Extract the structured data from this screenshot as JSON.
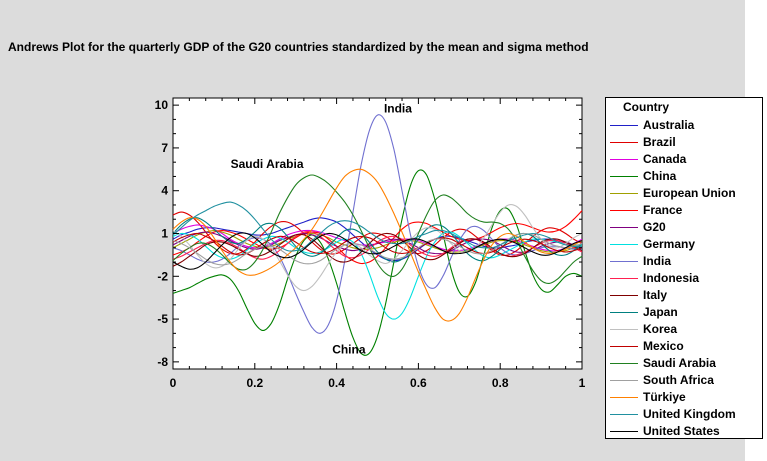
{
  "chart_data": {
    "type": "line",
    "title": "Andrews Plot for the quarterly GDP of the G20 countries standardized by the mean and sigma method",
    "xlim": [
      0,
      1
    ],
    "ylim": [
      -8.5,
      10.5
    ],
    "x_ticks": [
      0,
      0.2,
      0.4,
      0.6,
      0.8,
      1
    ],
    "x_tick_labels": [
      "0",
      "0.2",
      "0.4",
      "0.6",
      "0.8",
      "1"
    ],
    "y_ticks": [
      10,
      7,
      4,
      1,
      -2,
      -5,
      -8
    ],
    "y_tick_labels": [
      "10",
      "7",
      "4",
      "1",
      "-2",
      "-5",
      "-8"
    ],
    "legend_title": "Country",
    "legend_position": "right",
    "grid": false,
    "annotations": [
      {
        "text": "India",
        "x": 0.55,
        "y": 9.5
      },
      {
        "text": "Saudi Arabia",
        "x": 0.23,
        "y": 5.6
      },
      {
        "text": "China",
        "x": 0.43,
        "y": -7.4
      }
    ],
    "x": [
      0,
      0.02,
      0.04,
      0.06,
      0.08,
      0.1,
      0.12,
      0.14,
      0.16,
      0.18,
      0.2,
      0.22,
      0.24,
      0.26,
      0.28,
      0.3,
      0.32,
      0.34,
      0.36,
      0.38,
      0.4,
      0.42,
      0.44,
      0.46,
      0.48,
      0.5,
      0.52,
      0.54,
      0.56,
      0.58,
      0.6,
      0.62,
      0.64,
      0.66,
      0.68,
      0.7,
      0.72,
      0.74,
      0.76,
      0.78,
      0.8,
      0.82,
      0.84,
      0.86,
      0.88,
      0.9,
      0.92,
      0.94,
      0.96,
      0.98,
      1
    ],
    "series": [
      {
        "name": "Australia",
        "color": "#2020c8",
        "values": [
          0.6,
          0.9,
          1.1,
          1.3,
          1.4,
          1.4,
          1.3,
          1.2,
          1.1,
          1.0,
          0.9,
          0.9,
          1.0,
          1.2,
          1.4,
          1.6,
          1.8,
          2.0,
          2.1,
          2.0,
          1.8,
          1.4,
          0.9,
          0.4,
          -0.1,
          -0.5,
          -0.8,
          -0.9,
          -0.8,
          -0.5,
          -0.1,
          0.3,
          0.6,
          0.8,
          0.8,
          0.7,
          0.5,
          0.3,
          0.1,
          0.0,
          0.0,
          0.1,
          0.2,
          0.4,
          0.5,
          0.6,
          0.6,
          0.5,
          0.3,
          0.1,
          0.0
        ]
      },
      {
        "name": "Brazil",
        "color": "#e00000",
        "values": [
          2.3,
          2.5,
          2.3,
          1.8,
          1.1,
          0.4,
          -0.1,
          -0.4,
          -0.4,
          -0.1,
          0.4,
          1.0,
          1.5,
          1.8,
          1.8,
          1.5,
          1.0,
          0.4,
          -0.1,
          -0.4,
          -0.4,
          -0.1,
          0.3,
          0.7,
          1.0,
          1.0,
          0.8,
          0.4,
          0.0,
          -0.3,
          -0.4,
          -0.2,
          0.2,
          0.7,
          1.1,
          1.3,
          1.2,
          0.8,
          0.3,
          -0.2,
          -0.5,
          -0.5,
          -0.2,
          0.3,
          0.8,
          1.2,
          1.4,
          1.3,
          1.0,
          0.6,
          0.3
        ]
      },
      {
        "name": "Canada",
        "color": "#e000e0",
        "values": [
          1.0,
          1.3,
          1.5,
          1.6,
          1.5,
          1.3,
          1.0,
          0.6,
          0.3,
          0.1,
          0.0,
          0.1,
          0.3,
          0.6,
          0.9,
          1.1,
          1.2,
          1.2,
          1.1,
          0.9,
          0.7,
          0.5,
          0.3,
          0.2,
          0.2,
          0.3,
          0.4,
          0.5,
          0.6,
          0.6,
          0.5,
          0.3,
          0.1,
          -0.1,
          -0.2,
          -0.2,
          -0.1,
          0.1,
          0.3,
          0.5,
          0.6,
          0.6,
          0.5,
          0.3,
          0.1,
          -0.1,
          -0.2,
          -0.2,
          0.0,
          0.3,
          0.6
        ]
      },
      {
        "name": "China",
        "color": "#008000",
        "values": [
          -3.2,
          -3.0,
          -2.8,
          -2.5,
          -2.2,
          -2.0,
          -1.9,
          -2.2,
          -3.0,
          -4.2,
          -5.3,
          -5.8,
          -5.3,
          -4.0,
          -2.2,
          -0.6,
          0.5,
          0.9,
          0.4,
          -0.8,
          -2.5,
          -4.5,
          -6.3,
          -7.4,
          -7.4,
          -6.2,
          -3.9,
          -1.0,
          2.0,
          4.3,
          5.4,
          5.1,
          3.4,
          1.0,
          -1.5,
          -3.1,
          -3.4,
          -2.4,
          -0.5,
          1.4,
          2.6,
          2.7,
          1.6,
          -0.2,
          -1.9,
          -2.9,
          -3.1,
          -2.6,
          -2.0,
          -1.8,
          -2.0
        ]
      },
      {
        "name": "European Union",
        "color": "#a0a000",
        "values": [
          0.0,
          0.3,
          0.6,
          0.9,
          1.1,
          1.2,
          1.1,
          0.9,
          0.6,
          0.3,
          0.1,
          0.0,
          0.1,
          0.3,
          0.6,
          0.8,
          1.0,
          1.0,
          0.9,
          0.7,
          0.4,
          0.2,
          0.0,
          -0.1,
          -0.1,
          0.0,
          0.2,
          0.4,
          0.5,
          0.5,
          0.4,
          0.2,
          0.0,
          -0.2,
          -0.3,
          -0.3,
          -0.2,
          0.0,
          0.2,
          0.4,
          0.5,
          0.5,
          0.4,
          0.2,
          0.0,
          -0.2,
          -0.3,
          -0.3,
          -0.2,
          0.0,
          0.2
        ]
      },
      {
        "name": "France",
        "color": "#ff0000",
        "values": [
          -0.5,
          -0.3,
          0.0,
          0.4,
          0.8,
          1.1,
          1.2,
          1.1,
          0.9,
          0.6,
          0.3,
          0.0,
          -0.1,
          0.0,
          0.3,
          0.7,
          1.0,
          1.1,
          1.0,
          0.6,
          0.1,
          -0.5,
          -0.9,
          -1.1,
          -1.0,
          -0.6,
          0.0,
          0.7,
          1.3,
          1.7,
          1.8,
          1.7,
          1.4,
          1.1,
          0.8,
          0.6,
          0.5,
          0.6,
          0.8,
          1.1,
          1.4,
          1.6,
          1.7,
          1.6,
          1.4,
          1.2,
          1.1,
          1.2,
          1.5,
          2.0,
          2.6
        ]
      },
      {
        "name": "G20",
        "color": "#800080",
        "values": [
          0.2,
          0.5,
          0.8,
          1.0,
          1.1,
          1.0,
          0.8,
          0.5,
          0.2,
          0.0,
          -0.1,
          0.0,
          0.2,
          0.5,
          0.7,
          0.9,
          1.0,
          0.9,
          0.7,
          0.4,
          0.1,
          -0.1,
          -0.2,
          -0.1,
          0.1,
          0.3,
          0.5,
          0.6,
          0.5,
          0.3,
          0.0,
          -0.3,
          -0.4,
          -0.4,
          -0.2,
          0.1,
          0.4,
          0.6,
          0.6,
          0.5,
          0.2,
          -0.1,
          -0.3,
          -0.3,
          -0.2,
          0.1,
          0.3,
          0.4,
          0.4,
          0.2,
          0.0
        ]
      },
      {
        "name": "Germany",
        "color": "#00e0e0",
        "values": [
          0.8,
          1.0,
          0.9,
          0.6,
          0.1,
          -0.4,
          -0.7,
          -0.8,
          -0.6,
          -0.2,
          0.3,
          0.6,
          0.8,
          0.7,
          0.4,
          0.0,
          -0.3,
          -0.4,
          -0.3,
          0.0,
          0.4,
          0.6,
          0.4,
          -0.4,
          -1.8,
          -3.4,
          -4.6,
          -5.0,
          -4.6,
          -3.5,
          -2.0,
          -0.6,
          0.4,
          1.0,
          1.1,
          0.8,
          0.3,
          -0.2,
          -0.6,
          -0.7,
          -0.5,
          -0.2,
          0.1,
          0.4,
          0.6,
          0.6,
          0.5,
          0.4,
          0.3,
          0.2,
          0.2
        ]
      },
      {
        "name": "India",
        "color": "#7070d0",
        "values": [
          0.0,
          -0.2,
          -0.5,
          -0.8,
          -1.0,
          -1.0,
          -0.8,
          -0.4,
          0.1,
          0.5,
          0.7,
          0.6,
          0.2,
          -0.6,
          -1.8,
          -3.2,
          -4.5,
          -5.6,
          -6.0,
          -5.4,
          -3.7,
          -0.9,
          2.5,
          5.8,
          8.2,
          9.3,
          8.8,
          6.9,
          4.0,
          1.0,
          -1.3,
          -2.6,
          -2.8,
          -2.0,
          -0.7,
          0.5,
          1.3,
          1.5,
          1.2,
          0.6,
          0.0,
          -0.4,
          -0.5,
          -0.4,
          -0.2,
          0.0,
          0.1,
          0.1,
          0.0,
          -0.1,
          -0.1
        ]
      },
      {
        "name": "Indonesia",
        "color": "#ff2050",
        "values": [
          -0.8,
          -0.6,
          -0.3,
          0.0,
          0.3,
          0.5,
          0.5,
          0.3,
          0.0,
          -0.4,
          -0.7,
          -0.8,
          -0.6,
          -0.2,
          0.3,
          0.8,
          1.1,
          1.1,
          0.8,
          0.3,
          -0.2,
          -0.6,
          -0.7,
          -0.5,
          -0.1,
          0.4,
          0.7,
          0.8,
          0.6,
          0.2,
          -0.2,
          -0.5,
          -0.6,
          -0.4,
          0.0,
          0.4,
          0.6,
          0.6,
          0.3,
          -0.1,
          -0.4,
          -0.6,
          -0.5,
          -0.3,
          0.0,
          0.3,
          0.5,
          0.5,
          0.3,
          0.0,
          -0.3
        ]
      },
      {
        "name": "Italy",
        "color": "#800000",
        "values": [
          -1.3,
          -1.0,
          -0.6,
          -0.2,
          0.2,
          0.4,
          0.4,
          0.2,
          -0.1,
          -0.4,
          -0.6,
          -0.5,
          -0.2,
          0.2,
          0.6,
          0.9,
          0.9,
          0.6,
          0.1,
          -0.5,
          -0.9,
          -1.0,
          -0.8,
          -0.3,
          0.3,
          0.8,
          1.0,
          0.9,
          0.5,
          0.0,
          -0.5,
          -0.8,
          -0.8,
          -0.5,
          -0.1,
          0.3,
          0.6,
          0.6,
          0.4,
          0.0,
          -0.4,
          -0.6,
          -0.6,
          -0.4,
          0.0,
          0.4,
          0.6,
          0.6,
          0.4,
          0.1,
          -0.2
        ]
      },
      {
        "name": "Japan",
        "color": "#008080",
        "values": [
          1.0,
          1.6,
          2.0,
          2.1,
          1.8,
          1.3,
          0.8,
          0.4,
          0.3,
          0.6,
          1.1,
          1.6,
          1.7,
          1.4,
          0.8,
          0.1,
          -0.4,
          -0.6,
          -0.4,
          0.1,
          0.7,
          1.2,
          1.3,
          1.0,
          0.4,
          -0.3,
          -0.8,
          -1.0,
          -0.8,
          -0.2,
          0.6,
          1.3,
          1.6,
          1.5,
          1.0,
          0.3,
          -0.4,
          -0.8,
          -0.9,
          -0.6,
          -0.1,
          0.5,
          0.9,
          1.0,
          0.8,
          0.3,
          -0.2,
          -0.5,
          -0.5,
          -0.2,
          0.3
        ]
      },
      {
        "name": "Korea",
        "color": "#c0c0c0",
        "values": [
          1.2,
          0.8,
          0.2,
          -0.5,
          -1.1,
          -1.4,
          -1.3,
          -0.8,
          -0.1,
          0.5,
          0.8,
          0.6,
          0.0,
          -0.9,
          -1.9,
          -2.7,
          -3.0,
          -2.7,
          -2.0,
          -1.1,
          -0.3,
          0.2,
          0.3,
          0.0,
          -0.5,
          -0.9,
          -1.1,
          -0.8,
          -0.2,
          0.5,
          1.1,
          1.4,
          1.3,
          0.9,
          0.3,
          -0.2,
          -0.3,
          0.0,
          0.7,
          1.6,
          2.5,
          3.0,
          2.9,
          2.3,
          1.4,
          0.6,
          0.1,
          0.0,
          0.3,
          0.7,
          1.0
        ]
      },
      {
        "name": "Mexico",
        "color": "#c00000",
        "values": [
          0.4,
          0.7,
          0.9,
          1.0,
          0.8,
          0.5,
          0.1,
          -0.3,
          -0.5,
          -0.4,
          -0.1,
          0.3,
          0.6,
          0.8,
          0.7,
          0.4,
          0.0,
          -0.3,
          -0.4,
          -0.3,
          0.0,
          0.4,
          0.7,
          0.8,
          0.7,
          0.4,
          0.0,
          -0.3,
          -0.4,
          -0.3,
          0.0,
          0.3,
          0.6,
          0.7,
          0.6,
          0.3,
          0.0,
          -0.3,
          -0.4,
          -0.3,
          0.0,
          0.3,
          0.5,
          0.6,
          0.5,
          0.3,
          0.0,
          -0.2,
          -0.3,
          -0.2,
          0.0
        ]
      },
      {
        "name": "Saudi Arabia",
        "color": "#208020",
        "values": [
          -0.9,
          -0.4,
          0.0,
          0.3,
          0.3,
          0.0,
          -0.5,
          -1.1,
          -1.5,
          -1.5,
          -1.0,
          -0.1,
          1.1,
          2.4,
          3.5,
          4.4,
          4.9,
          5.1,
          4.9,
          4.5,
          3.9,
          3.2,
          2.3,
          1.2,
          0.0,
          -1.1,
          -1.8,
          -2.0,
          -1.5,
          -0.4,
          1.0,
          2.3,
          3.3,
          3.7,
          3.5,
          3.0,
          2.4,
          2.0,
          1.8,
          1.8,
          1.7,
          1.3,
          0.5,
          -0.6,
          -1.6,
          -2.3,
          -2.5,
          -2.2,
          -1.6,
          -1.0,
          -0.6
        ]
      },
      {
        "name": "South Africa",
        "color": "#a0a0a0",
        "values": [
          0.5,
          0.3,
          0.0,
          -0.4,
          -0.8,
          -1.1,
          -1.2,
          -1.1,
          -0.8,
          -0.4,
          -0.1,
          0.1,
          0.1,
          -0.1,
          -0.5,
          -0.9,
          -1.1,
          -1.1,
          -0.9,
          -0.5,
          -0.1,
          0.2,
          0.3,
          0.2,
          -0.1,
          -0.4,
          -0.7,
          -0.8,
          -0.7,
          -0.4,
          0.0,
          0.4,
          0.6,
          0.6,
          0.4,
          0.1,
          -0.2,
          -0.4,
          -0.4,
          -0.2,
          0.2,
          0.6,
          0.9,
          1.0,
          0.9,
          0.6,
          0.3,
          0.1,
          0.0,
          0.1,
          0.3
        ]
      },
      {
        "name": "Türkiye",
        "color": "#ff8000",
        "values": [
          1.3,
          1.8,
          2.1,
          2.0,
          1.5,
          0.7,
          -0.2,
          -1.0,
          -1.6,
          -1.9,
          -1.9,
          -1.7,
          -1.4,
          -1.0,
          -0.5,
          0.0,
          0.6,
          1.3,
          2.2,
          3.2,
          4.2,
          5.0,
          5.4,
          5.5,
          5.2,
          4.6,
          3.6,
          2.4,
          1.1,
          -0.3,
          -1.7,
          -3.0,
          -4.2,
          -5.0,
          -5.1,
          -4.6,
          -3.5,
          -2.1,
          -0.8,
          0.2,
          0.8,
          1.0,
          0.8,
          0.4,
          0.0,
          -0.3,
          -0.4,
          -0.3,
          -0.1,
          0.2,
          0.5
        ]
      },
      {
        "name": "United Kingdom",
        "color": "#2090a0",
        "values": [
          0.9,
          1.4,
          1.9,
          2.3,
          2.6,
          2.9,
          3.1,
          3.2,
          3.0,
          2.6,
          2.0,
          1.3,
          0.6,
          0.1,
          -0.2,
          -0.2,
          0.0,
          0.5,
          1.0,
          1.5,
          1.8,
          1.9,
          1.8,
          1.5,
          1.1,
          0.7,
          0.4,
          0.3,
          0.3,
          0.5,
          0.8,
          1.0,
          1.2,
          1.2,
          1.0,
          0.7,
          0.4,
          0.1,
          0.0,
          0.0,
          0.2,
          0.5,
          0.7,
          0.9,
          1.0,
          0.9,
          0.7,
          0.4,
          0.2,
          0.1,
          0.1
        ]
      },
      {
        "name": "United States",
        "color": "#000000",
        "values": [
          -1.0,
          -1.3,
          -1.5,
          -1.4,
          -1.0,
          -0.4,
          0.2,
          0.7,
          1.0,
          1.0,
          0.7,
          0.2,
          -0.3,
          -0.6,
          -0.7,
          -0.5,
          -0.1,
          0.4,
          0.8,
          1.0,
          0.9,
          0.6,
          0.2,
          -0.2,
          -0.4,
          -0.4,
          -0.2,
          0.1,
          0.4,
          0.6,
          0.6,
          0.4,
          0.1,
          -0.2,
          -0.4,
          -0.4,
          -0.3,
          0.0,
          0.3,
          0.5,
          0.6,
          0.5,
          0.3,
          0.0,
          -0.3,
          -0.5,
          -0.5,
          -0.3,
          0.0,
          0.3,
          0.5
        ]
      }
    ]
  }
}
